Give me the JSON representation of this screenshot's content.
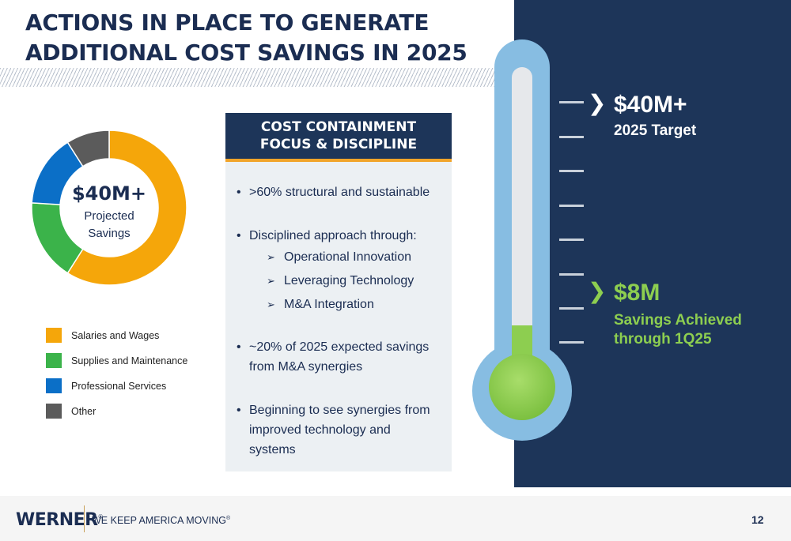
{
  "title": {
    "line1": "ACTIONS IN PLACE TO GENERATE",
    "line2": "ADDITIONAL COST SAVINGS IN 2025"
  },
  "donut": {
    "center_value": "$40M+",
    "center_label_line1": "Projected",
    "center_label_line2": "Savings"
  },
  "chart_data": {
    "type": "pie",
    "categories": [
      "Salaries and Wages",
      "Supplies and Maintenance",
      "Professional Services",
      "Other"
    ],
    "values": [
      59,
      17,
      15,
      9
    ],
    "colors": [
      "#f5a60a",
      "#3bb34a",
      "#0b6fc7",
      "#5b5b5b"
    ],
    "legend": "bottom"
  },
  "legend": [
    {
      "label": "Salaries and Wages",
      "color": "#f5a60a"
    },
    {
      "label": "Supplies and Maintenance",
      "color": "#3bb34a"
    },
    {
      "label": "Professional Services",
      "color": "#0b6fc7"
    },
    {
      "label": "Other",
      "color": "#5b5b5b"
    }
  ],
  "card": {
    "heading_line1": "COST CONTAINMENT",
    "heading_line2": "FOCUS & DISCIPLINE",
    "bullet1": ">60% structural and sustainable",
    "bullet2": "Disciplined approach through:",
    "sub_items": [
      "Operational Innovation",
      "Leveraging Technology",
      "M&A Integration"
    ],
    "bullet3_line1": "~20% of 2025 expected savings",
    "bullet3_line2": "from M&A synergies",
    "bullet4_line1": "Beginning to see synergies from",
    "bullet4_line2": "improved technology and",
    "bullet4_line3": "systems"
  },
  "thermometer": {
    "fill_fraction": 0.2,
    "target_value": "$40M+",
    "target_label": "2025 Target",
    "achieved_value": "$8M",
    "achieved_label_line1": "Savings Achieved",
    "achieved_label_line2": "through 1Q25"
  },
  "footer": {
    "logo": "WERNER",
    "logo_mark": "®",
    "tagline": "WE KEEP AMERICA MOVING",
    "tagline_mark": "®",
    "page_number": "12"
  },
  "colors": {
    "navy": "#1d3559",
    "orange": "#f1a42a",
    "green": "#8dce50",
    "thermo_blue": "#87bde2"
  }
}
